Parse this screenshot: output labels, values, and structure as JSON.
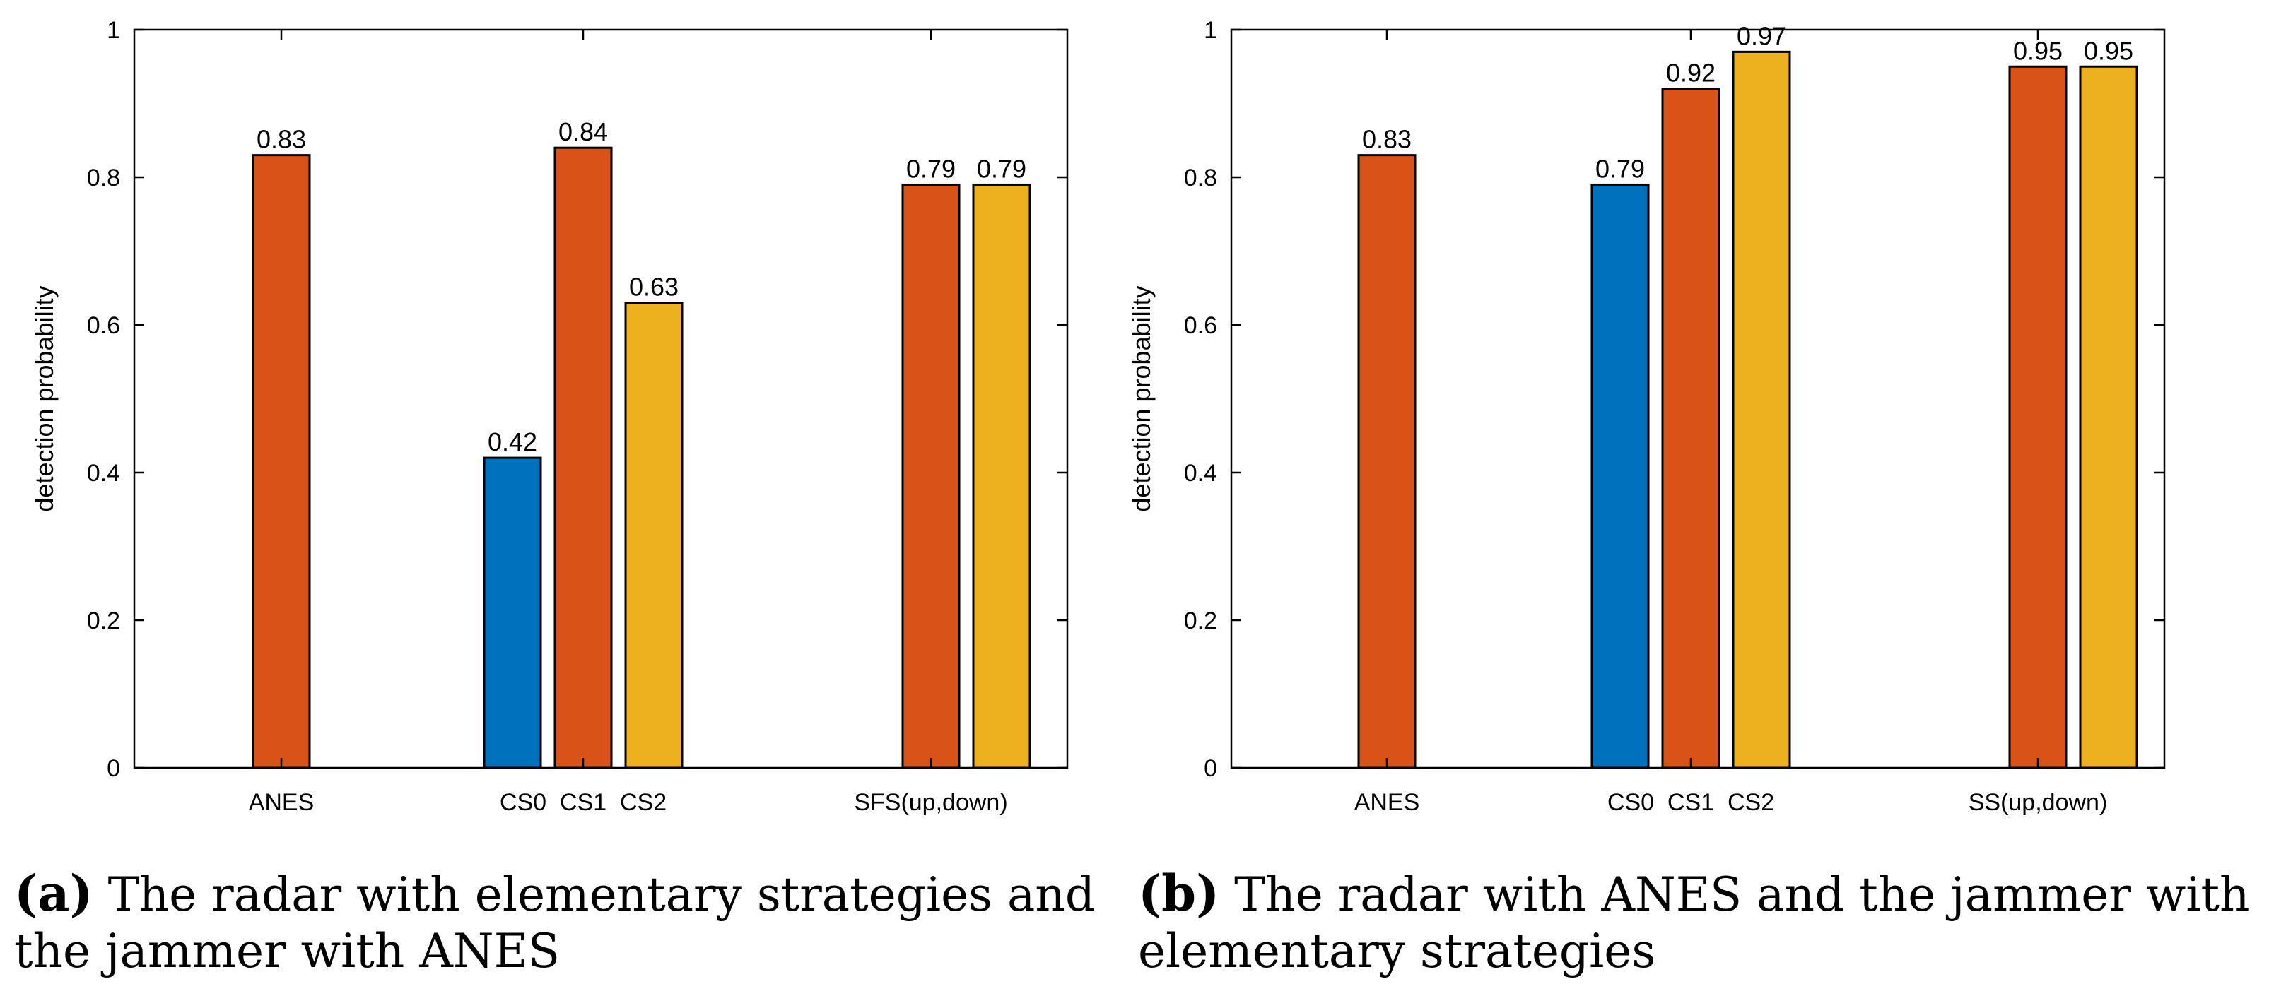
{
  "chart_data": [
    {
      "type": "bar",
      "panel": "a",
      "categories": [
        "ANES",
        "CS0  CS1  CS2",
        "SFS(up,down)"
      ],
      "series": [
        {
          "name": "blue",
          "color": "#0072BD",
          "values": [
            null,
            0.42,
            null
          ]
        },
        {
          "name": "orange",
          "color": "#D95319",
          "values": [
            0.83,
            0.84,
            0.79
          ]
        },
        {
          "name": "yellow",
          "color": "#EDB120",
          "values": [
            null,
            0.63,
            0.79
          ]
        }
      ],
      "bars": [
        {
          "label": "0.83",
          "value": 0.83,
          "series": "orange",
          "group": 0,
          "slot": 1
        },
        {
          "label": "0.42",
          "value": 0.42,
          "series": "blue",
          "group": 1,
          "slot": 0
        },
        {
          "label": "0.84",
          "value": 0.84,
          "series": "orange",
          "group": 1,
          "slot": 1
        },
        {
          "label": "0.63",
          "value": 0.63,
          "series": "yellow",
          "group": 1,
          "slot": 2
        },
        {
          "label": "0.79",
          "value": 0.79,
          "series": "orange",
          "group": 2,
          "slot": 1
        },
        {
          "label": "0.79",
          "value": 0.79,
          "series": "yellow",
          "group": 2,
          "slot": 2
        }
      ],
      "xlabel": "",
      "ylabel": "detection probability",
      "ylim": [
        0,
        1
      ],
      "yticks": [
        "0",
        "0.2",
        "0.4",
        "0.6",
        "0.8",
        "1"
      ],
      "caption_tag": "(a)",
      "caption_text": "The radar with elementary strategies and the jammer with ANES"
    },
    {
      "type": "bar",
      "panel": "b",
      "categories": [
        "ANES",
        "CS0  CS1  CS2",
        "SS(up,down)"
      ],
      "series": [
        {
          "name": "blue",
          "color": "#0072BD",
          "values": [
            null,
            0.79,
            null
          ]
        },
        {
          "name": "orange",
          "color": "#D95319",
          "values": [
            0.83,
            0.92,
            0.95
          ]
        },
        {
          "name": "yellow",
          "color": "#EDB120",
          "values": [
            null,
            0.97,
            0.95
          ]
        }
      ],
      "bars": [
        {
          "label": "0.83",
          "value": 0.83,
          "series": "orange",
          "group": 0,
          "slot": 1
        },
        {
          "label": "0.79",
          "value": 0.79,
          "series": "blue",
          "group": 1,
          "slot": 0
        },
        {
          "label": "0.92",
          "value": 0.92,
          "series": "orange",
          "group": 1,
          "slot": 1
        },
        {
          "label": "0.97",
          "value": 0.97,
          "series": "yellow",
          "group": 1,
          "slot": 2
        },
        {
          "label": "0.95",
          "value": 0.95,
          "series": "orange",
          "group": 2,
          "slot": 1
        },
        {
          "label": "0.95",
          "value": 0.95,
          "series": "yellow",
          "group": 2,
          "slot": 2
        }
      ],
      "xlabel": "",
      "ylabel": "detection probability",
      "ylim": [
        0,
        1
      ],
      "yticks": [
        "0",
        "0.2",
        "0.4",
        "0.6",
        "0.8",
        "1"
      ],
      "caption_tag": "(b)",
      "caption_text": "The radar with ANES and the jammer with elementary strategies"
    }
  ]
}
